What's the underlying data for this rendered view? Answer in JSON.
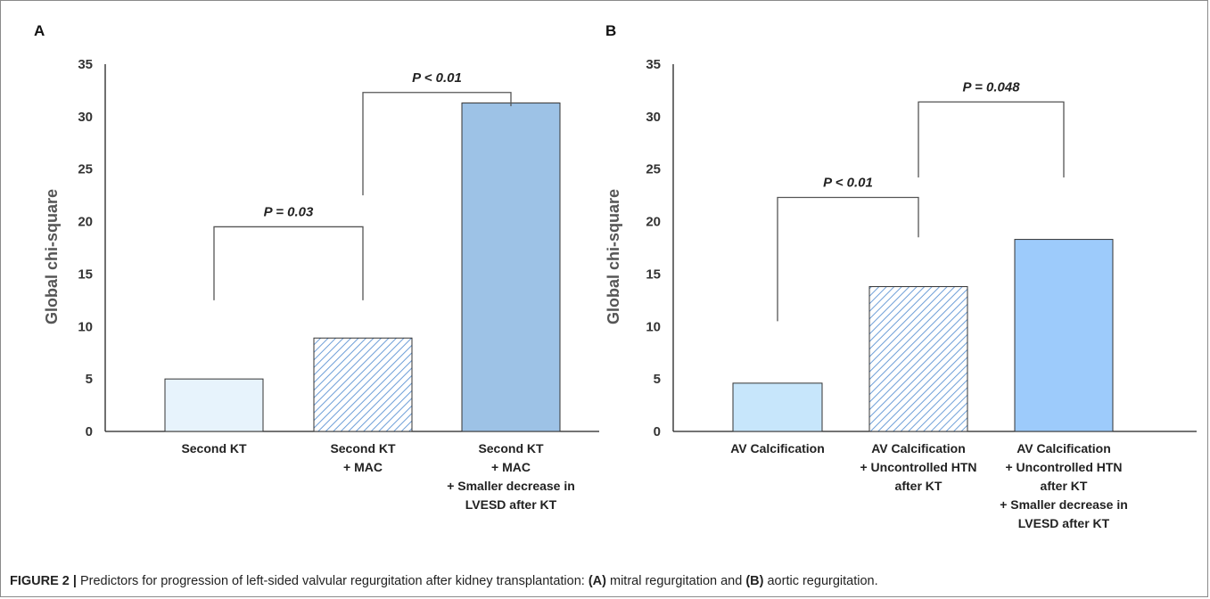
{
  "figure": {
    "caption_label": "FIGURE 2 |",
    "caption_text_1": " Predictors for progression of left-sided valvular regurgitation after kidney transplantation: ",
    "caption_a": "(A)",
    "caption_text_2": " mitral regurgitation and ",
    "caption_b": "(B)",
    "caption_text_3": " aortic regurgitation."
  },
  "colors": {
    "axis": "#222222",
    "bracket": "#555555",
    "text": "#333333",
    "panelA_bar1": "#e7f3fc",
    "panelA_bar2_hatch": "#6f9fd8",
    "panelA_bar3": "#9dc2e6",
    "panelB_bar1": "#c7e6fb",
    "panelB_bar2_hatch": "#6f9fd8",
    "panelB_bar3": "#9dcbfb"
  },
  "chart_data": [
    {
      "panel": "A",
      "type": "bar",
      "ylabel": "Global chi-square",
      "ylim": [
        0,
        35
      ],
      "yticks": [
        0,
        5,
        10,
        15,
        20,
        25,
        30,
        35
      ],
      "categories": [
        [
          "Second KT"
        ],
        [
          "Second KT",
          "+ MAC"
        ],
        [
          "Second KT",
          "+ MAC",
          "+ Smaller decrease in",
          "LVESD after KT"
        ]
      ],
      "values": [
        5.0,
        8.9,
        31.3
      ],
      "bar_styles": [
        "solid",
        "hatched",
        "solid"
      ],
      "bar_colors": [
        "panelA_bar1",
        "panelA_bar2_hatch",
        "panelA_bar3"
      ],
      "annotations": [
        {
          "text": "P = 0.03",
          "from_bar": 0,
          "to_bar": 1,
          "level": 19.5,
          "left_end": 12.5,
          "right_end": 12.5
        },
        {
          "text": "P < 0.01",
          "from_bar": 1,
          "to_bar": 2,
          "level": 32.3,
          "left_end": 22.5,
          "right_end": 31.0
        }
      ]
    },
    {
      "panel": "B",
      "type": "bar",
      "ylabel": "Global chi-square",
      "ylim": [
        0,
        35
      ],
      "yticks": [
        0,
        5,
        10,
        15,
        20,
        25,
        30,
        35
      ],
      "categories": [
        [
          "AV Calcification"
        ],
        [
          "AV Calcification",
          "+ Uncontrolled HTN",
          "after KT"
        ],
        [
          "AV Calcification",
          "+ Uncontrolled HTN",
          "after KT",
          "+ Smaller decrease in",
          "LVESD after KT"
        ]
      ],
      "values": [
        4.6,
        13.8,
        18.3
      ],
      "bar_styles": [
        "solid",
        "hatched",
        "solid"
      ],
      "bar_colors": [
        "panelB_bar1",
        "panelB_bar2_hatch",
        "panelB_bar3"
      ],
      "annotations": [
        {
          "text": "P < 0.01",
          "from_bar": 0,
          "to_bar": 1,
          "level": 22.3,
          "left_end": 10.5,
          "right_end": 18.5
        },
        {
          "text": "P = 0.048",
          "from_bar": 1,
          "to_bar": 2,
          "level": 31.4,
          "left_end": 24.2,
          "right_end": 24.2
        }
      ]
    }
  ]
}
